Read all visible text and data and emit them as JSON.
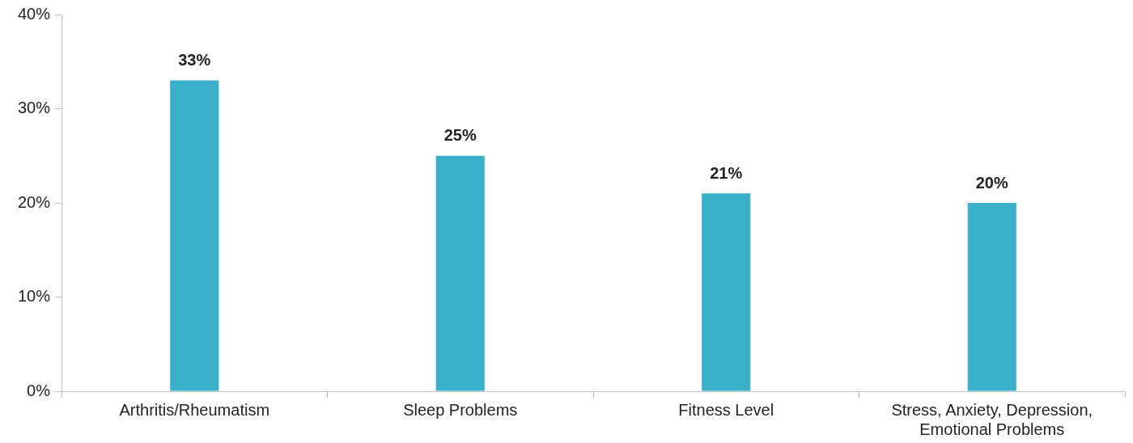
{
  "chart_data": {
    "type": "bar",
    "categories": [
      "Arthritis/Rheumatism",
      "Sleep Problems",
      "Fitness Level",
      "Stress, Anxiety, Depression, Emotional Problems"
    ],
    "values": [
      33,
      25,
      21,
      20
    ],
    "color": "#3aafc9",
    "value_labels": [
      "33%",
      "25%",
      "21%",
      "20%"
    ],
    "ylim": [
      0,
      40
    ],
    "yticks": [
      {
        "value": 0,
        "label": "0%"
      },
      {
        "value": 10,
        "label": "10%"
      },
      {
        "value": 20,
        "label": "20%"
      },
      {
        "value": 30,
        "label": "30%"
      },
      {
        "value": 40,
        "label": "40%"
      }
    ],
    "grid": false,
    "legend": false
  }
}
